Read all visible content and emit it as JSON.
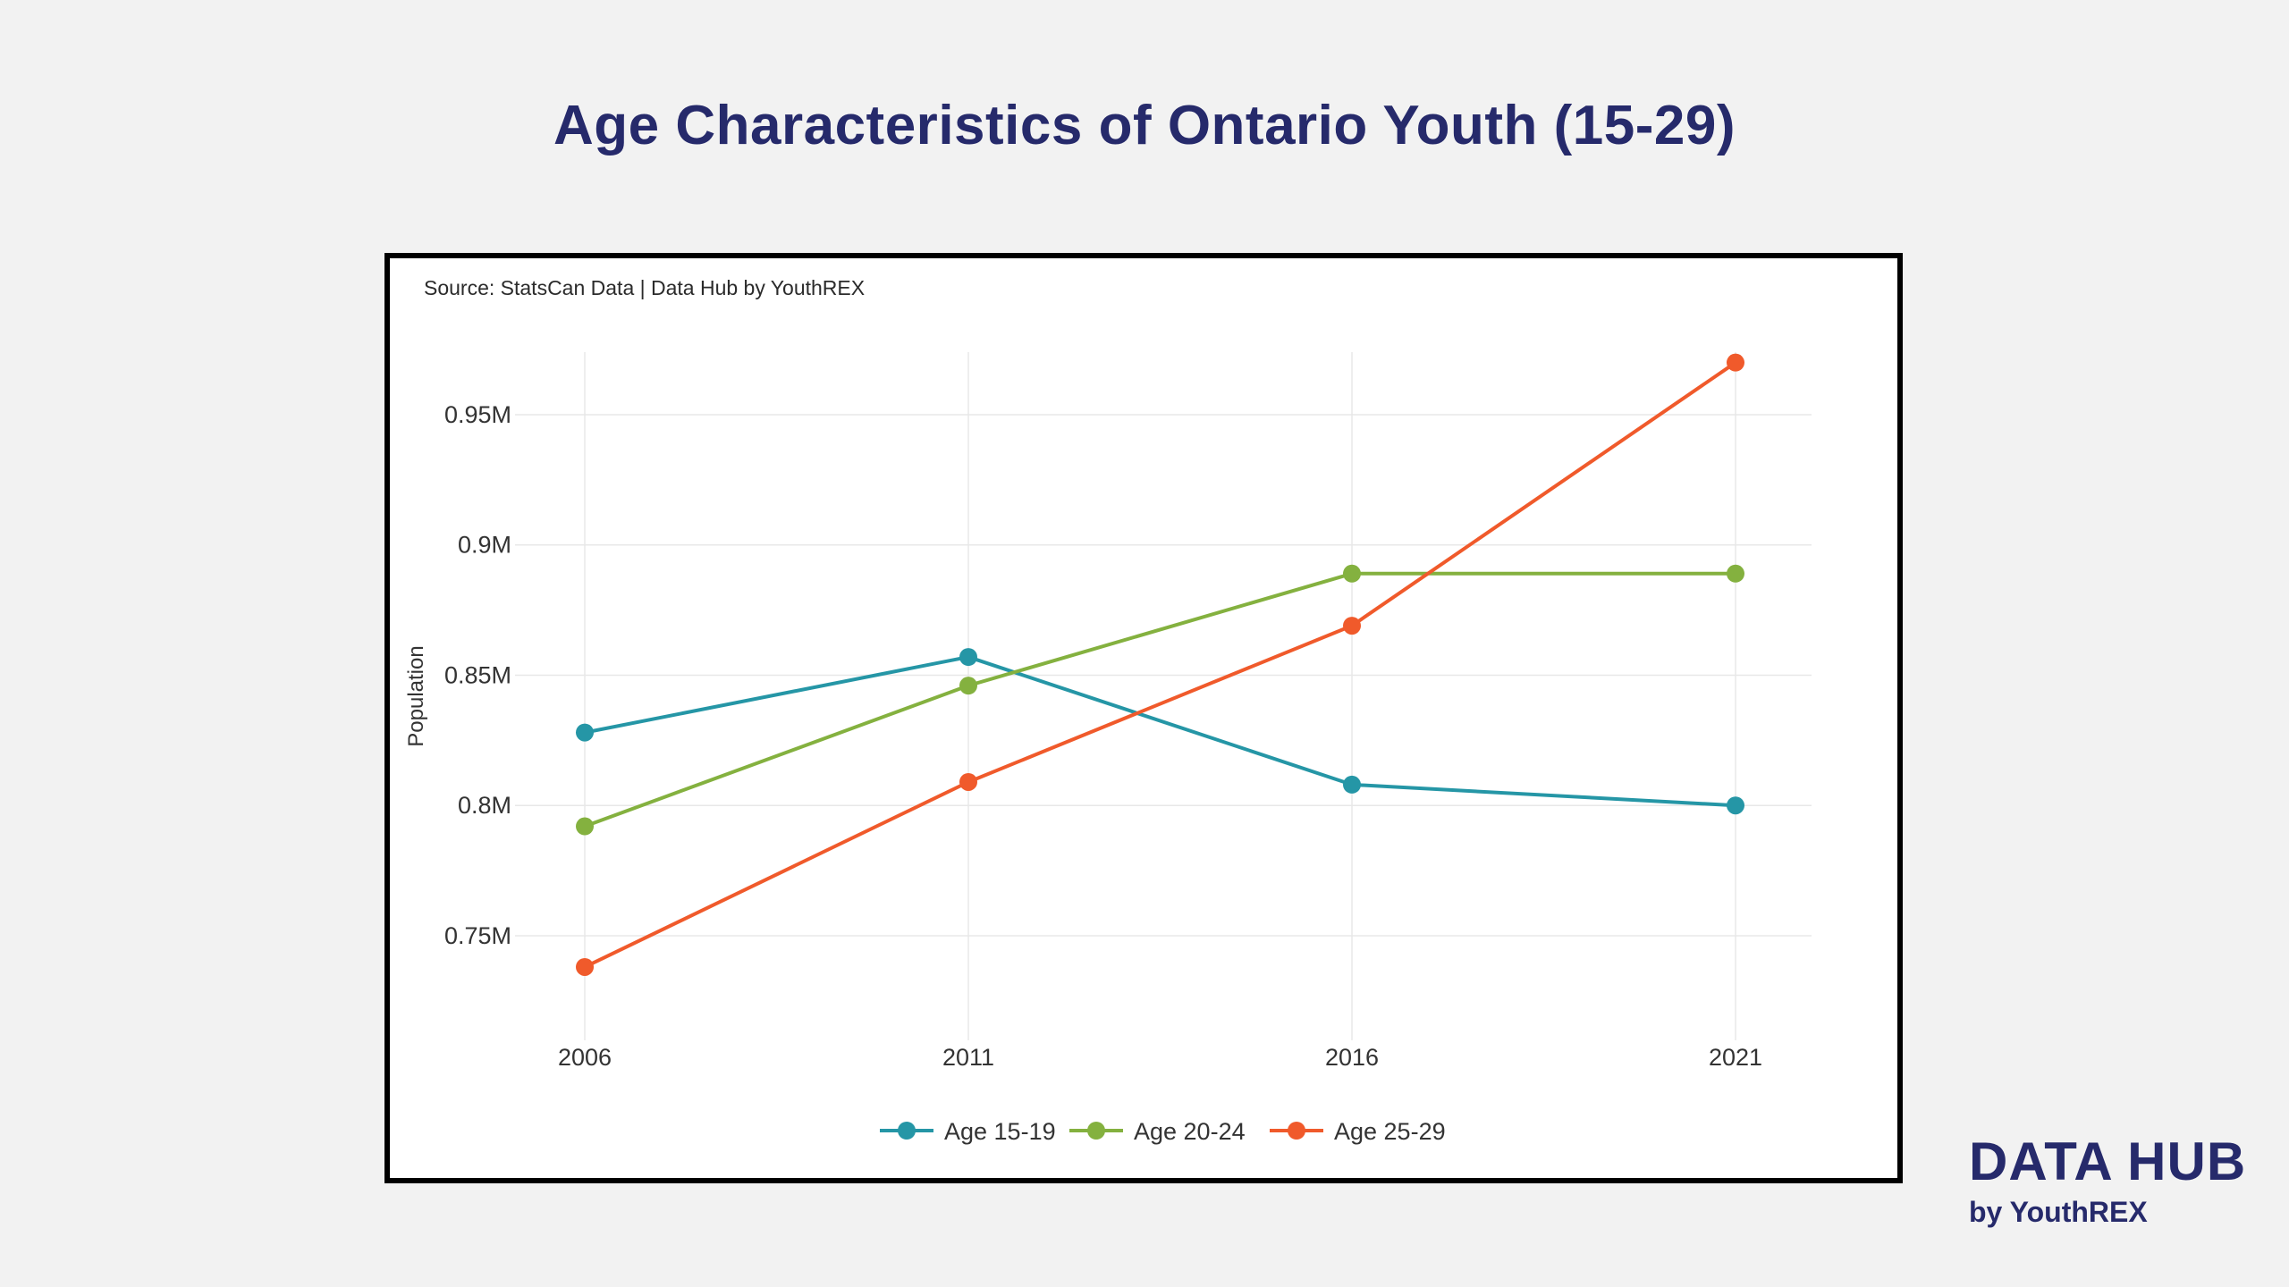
{
  "title": "Age Characteristics of Ontario Youth (15-29)",
  "source_note": "Source: StatsCan Data | Data Hub by YouthREX",
  "branding": {
    "name": "DATA HUB",
    "byline": "by YouthREX"
  },
  "chart_data": {
    "type": "line",
    "title": "Age Characteristics of Ontario Youth (15-29)",
    "xlabel": "",
    "ylabel": "Population",
    "x": [
      2006,
      2011,
      2016,
      2021
    ],
    "x_tick_labels": [
      "2006",
      "2011",
      "2016",
      "2021"
    ],
    "ylim": [
      0.715,
      0.985
    ],
    "y_ticks": [
      0.75,
      0.8,
      0.85,
      0.9,
      0.95
    ],
    "y_tick_labels": [
      "0.75M",
      "0.8M",
      "0.85M",
      "0.9M",
      "0.95M"
    ],
    "grid": true,
    "legend_position": "bottom",
    "series": [
      {
        "name": "Age 15-19",
        "color": "#2596a6",
        "values": [
          0.828,
          0.857,
          0.808,
          0.8
        ]
      },
      {
        "name": "Age 20-24",
        "color": "#84b13f",
        "values": [
          0.792,
          0.846,
          0.889,
          0.889
        ]
      },
      {
        "name": "Age 25-29",
        "color": "#f05a2b",
        "values": [
          0.738,
          0.809,
          0.869,
          0.97
        ]
      }
    ]
  }
}
